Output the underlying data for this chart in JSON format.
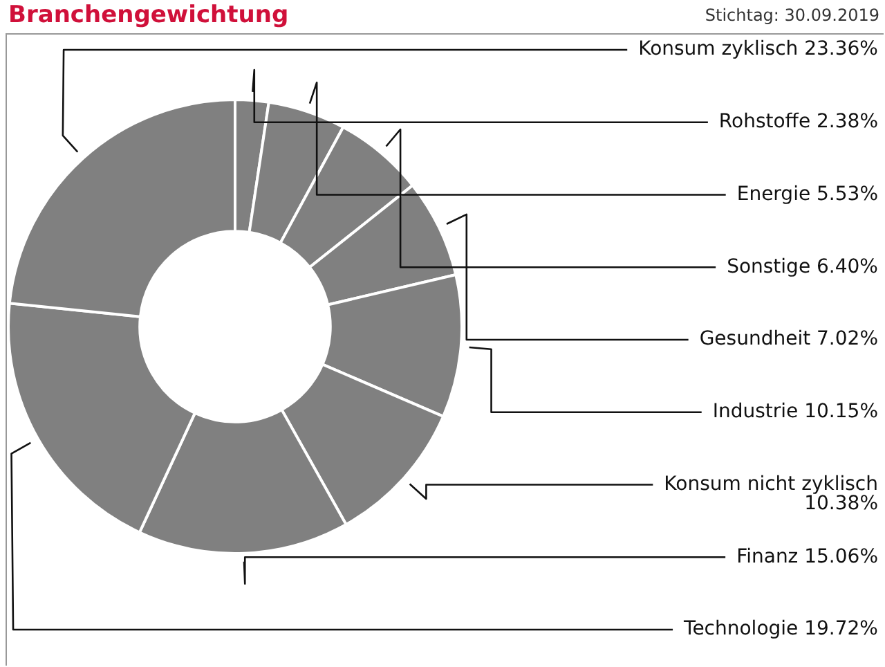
{
  "chart_data": {
    "type": "donut",
    "title": "Branchengewichtung",
    "subtitle": "Stichtag: 30.09.2019",
    "categories": [
      "Rohstoffe",
      "Energie",
      "Sonstige",
      "Gesundheit",
      "Industrie",
      "Konsum nicht zyklisch",
      "Finanz",
      "Technologie",
      "Konsum zyklisch"
    ],
    "values": [
      2.38,
      5.53,
      6.4,
      7.02,
      10.15,
      10.38,
      15.06,
      19.72,
      23.36
    ],
    "value_labels": [
      "2.38%",
      "5.53%",
      "6.40%",
      "7.02%",
      "10.15%",
      "10.38%",
      "15.06%",
      "19.72%",
      "23.36%"
    ],
    "colors": [
      "#808080",
      "#808080",
      "#808080",
      "#808080",
      "#808080",
      "#808080",
      "#808080",
      "#808080",
      "#808080"
    ],
    "legend": false
  }
}
